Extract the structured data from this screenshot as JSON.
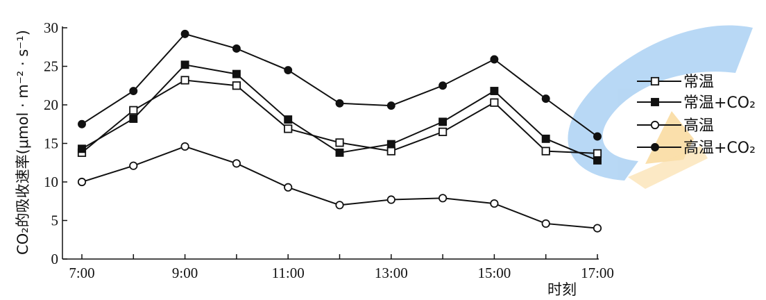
{
  "chart_data": {
    "type": "line",
    "title": "",
    "xlabel": "时刻",
    "ylabel": "CO₂的吸收速率(μmol · m⁻² · s⁻¹)",
    "x": [
      "7:00",
      "8:00",
      "9:00",
      "10:00",
      "11:00",
      "12:00",
      "13:00",
      "14:00",
      "15:00",
      "16:00",
      "17:00"
    ],
    "x_tick_labels": [
      "7:00",
      "9:00",
      "11:00",
      "13:00",
      "15:00",
      "17:00"
    ],
    "y_ticks": [
      0,
      5,
      10,
      15,
      20,
      25,
      30
    ],
    "ylim": [
      0,
      30
    ],
    "grid": false,
    "legend_position": "right",
    "series": [
      {
        "name": "常温",
        "marker": "open-square",
        "values": [
          13.8,
          19.3,
          23.2,
          22.5,
          16.9,
          15.1,
          14.0,
          16.5,
          20.3,
          14.0,
          13.7
        ]
      },
      {
        "name": "常温+CO₂",
        "marker": "filled-square",
        "values": [
          14.3,
          18.2,
          25.2,
          24.0,
          18.1,
          13.8,
          14.9,
          17.8,
          21.8,
          15.6,
          12.8
        ]
      },
      {
        "name": "高温",
        "marker": "open-circle",
        "values": [
          10.0,
          12.1,
          14.6,
          12.4,
          9.3,
          7.0,
          7.7,
          7.9,
          7.2,
          4.6,
          4.0
        ]
      },
      {
        "name": "高温+CO₂",
        "marker": "filled-circle",
        "values": [
          17.5,
          21.8,
          29.2,
          27.3,
          24.5,
          20.2,
          19.9,
          22.5,
          25.9,
          20.8,
          15.9
        ]
      }
    ]
  }
}
